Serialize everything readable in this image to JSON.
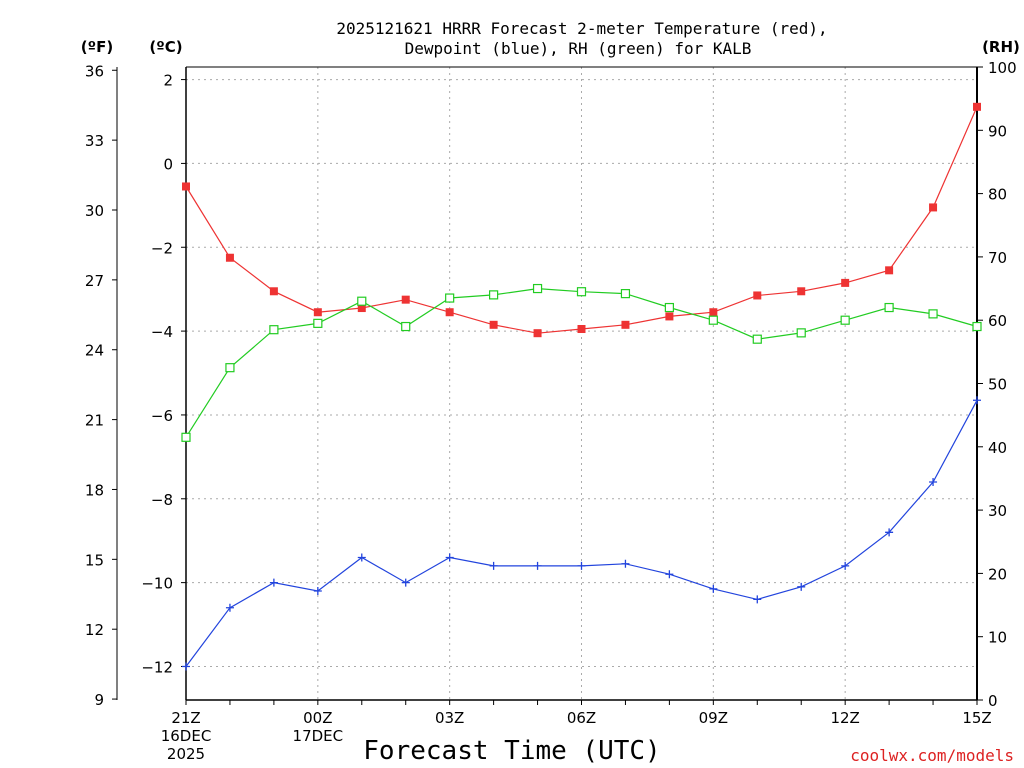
{
  "chart_data": {
    "type": "line",
    "title_line1": "2025121621 HRRR Forecast 2-meter Temperature (red),",
    "title_line2": "Dewpoint (blue), RH (green) for KALB",
    "xlabel": "Forecast Time (UTC)",
    "credit": "coolwx.com/models",
    "unit_f": "(ºF)",
    "unit_c": "(ºC)",
    "unit_rh": "(RH)",
    "hours": [
      0,
      1,
      2,
      3,
      4,
      5,
      6,
      7,
      8,
      9,
      10,
      11,
      12,
      13,
      14,
      15,
      16,
      17,
      18
    ],
    "x_ticks": [
      {
        "hour": 0,
        "lines": [
          "21Z",
          "16DEC",
          "2025"
        ]
      },
      {
        "hour": 3,
        "lines": [
          "00Z",
          "17DEC"
        ]
      },
      {
        "hour": 6,
        "lines": [
          "03Z"
        ]
      },
      {
        "hour": 9,
        "lines": [
          "06Z"
        ]
      },
      {
        "hour": 12,
        "lines": [
          "09Z"
        ]
      },
      {
        "hour": 15,
        "lines": [
          "12Z"
        ]
      },
      {
        "hour": 18,
        "lines": [
          "15Z"
        ]
      }
    ],
    "ylim_c": [
      -12.8,
      2.3
    ],
    "ylim_rh": [
      0,
      100
    ],
    "c_ticks": [
      2,
      0,
      -2,
      -4,
      -6,
      -8,
      -10,
      -12
    ],
    "f_ticks": [
      36,
      33,
      30,
      27,
      24,
      21,
      18,
      15,
      12,
      9
    ],
    "rh_ticks": [
      100,
      90,
      80,
      70,
      60,
      50,
      40,
      30,
      20,
      10,
      0
    ],
    "series": [
      {
        "name": "Temperature",
        "axis": "c",
        "color": "#ee3333",
        "marker": "filled-square",
        "values": [
          -0.55,
          -2.25,
          -3.05,
          -3.55,
          -3.45,
          -3.25,
          -3.55,
          -3.85,
          -4.05,
          -3.95,
          -3.85,
          -3.65,
          -3.55,
          -3.15,
          -3.05,
          -2.85,
          -2.55,
          -1.05,
          1.35
        ]
      },
      {
        "name": "Dewpoint",
        "axis": "c",
        "color": "#2244dd",
        "marker": "plus",
        "values": [
          -12.0,
          -10.6,
          -10.0,
          -10.2,
          -9.4,
          -10.0,
          -9.4,
          -9.6,
          -9.6,
          -9.6,
          -9.55,
          -9.8,
          -10.15,
          -10.4,
          -10.1,
          -9.6,
          -8.8,
          -7.6,
          -5.65
        ]
      },
      {
        "name": "RH",
        "axis": "rh",
        "color": "#22cc22",
        "marker": "open-square",
        "values": [
          41.5,
          52.5,
          58.5,
          59.5,
          63.0,
          59.0,
          63.5,
          64.0,
          65.0,
          64.5,
          64.2,
          62.0,
          60.0,
          57.0,
          58.0,
          60.0,
          62.0,
          61.0,
          59.0
        ]
      }
    ]
  }
}
